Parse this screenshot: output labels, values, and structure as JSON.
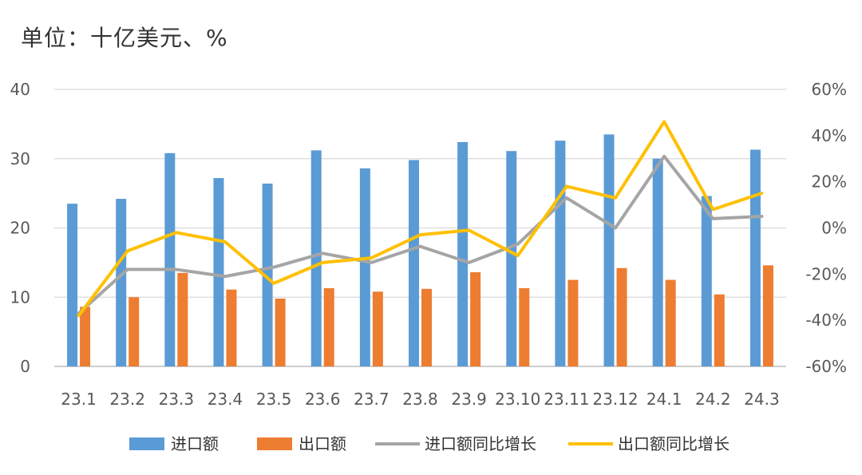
{
  "chart_data": {
    "type": "bar",
    "title": "单位：十亿美元、%",
    "categories": [
      "23.1",
      "23.2",
      "23.3",
      "23.4",
      "23.5",
      "23.6",
      "23.7",
      "23.8",
      "23.9",
      "23.10",
      "23.11",
      "23.12",
      "24.1",
      "24.2",
      "24.3"
    ],
    "y_left": {
      "min": 0,
      "max": 40,
      "ticks": [
        "0",
        "10",
        "20",
        "30",
        "40"
      ]
    },
    "y_right": {
      "min": -60,
      "max": 60,
      "ticks": [
        "-60%",
        "-40%",
        "-20%",
        "0%",
        "20%",
        "40%",
        "60%"
      ]
    },
    "grid": true,
    "legend_position": "bottom",
    "series": [
      {
        "name": "进口额",
        "type": "bar",
        "axis": "left",
        "color": "#5B9BD5",
        "values": [
          23.5,
          24.2,
          30.8,
          27.2,
          26.4,
          31.2,
          28.6,
          29.8,
          32.4,
          31.1,
          32.6,
          33.5,
          30.0,
          24.6,
          31.3
        ]
      },
      {
        "name": "出口额",
        "type": "bar",
        "axis": "left",
        "color": "#ED7D31",
        "values": [
          8.6,
          10.0,
          13.5,
          11.1,
          9.8,
          11.3,
          10.8,
          11.2,
          13.6,
          11.3,
          12.5,
          14.2,
          12.5,
          10.4,
          14.6
        ]
      },
      {
        "name": "进口额同比增长",
        "type": "line",
        "axis": "right",
        "color": "#A5A5A5",
        "values": [
          -37,
          -18,
          -18,
          -21,
          -17,
          -11,
          -15,
          -8,
          -15,
          -7,
          13,
          0,
          31,
          4,
          5
        ]
      },
      {
        "name": "出口额同比增长",
        "type": "line",
        "axis": "right",
        "color": "#FFC000",
        "values": [
          -38,
          -10,
          -2,
          -6,
          -24,
          -15,
          -13,
          -3,
          -1,
          -12,
          18,
          13,
          46,
          8,
          15
        ]
      }
    ]
  }
}
